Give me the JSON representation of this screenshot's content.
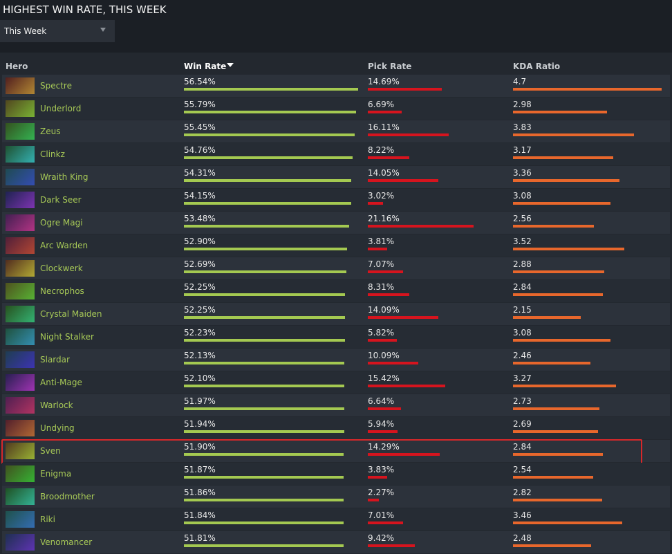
{
  "header": {
    "title": "HIGHEST WIN RATE, THIS WEEK",
    "dropdown": "This Week"
  },
  "table": {
    "columns": {
      "hero": "Hero",
      "win_rate": "Win Rate",
      "pick_rate": "Pick Rate",
      "kda": "KDA Ratio"
    },
    "rows": [
      {
        "hero": "Spectre",
        "win_rate": {
          "value": 56.54,
          "label": "56.54%"
        },
        "pick_rate": {
          "value": 14.69,
          "label": "14.69%"
        },
        "kda": 4.7
      },
      {
        "hero": "Underlord",
        "win_rate": {
          "value": 55.79,
          "label": "55.79%"
        },
        "pick_rate": {
          "value": 6.69,
          "label": "6.69%"
        },
        "kda": 2.98
      },
      {
        "hero": "Zeus",
        "win_rate": {
          "value": 55.45,
          "label": "55.45%"
        },
        "pick_rate": {
          "value": 16.11,
          "label": "16.11%"
        },
        "kda": 3.83
      },
      {
        "hero": "Clinkz",
        "win_rate": {
          "value": 54.76,
          "label": "54.76%"
        },
        "pick_rate": {
          "value": 8.22,
          "label": "8.22%"
        },
        "kda": 3.17
      },
      {
        "hero": "Wraith King",
        "win_rate": {
          "value": 54.31,
          "label": "54.31%"
        },
        "pick_rate": {
          "value": 14.05,
          "label": "14.05%"
        },
        "kda": 3.36
      },
      {
        "hero": "Dark Seer",
        "win_rate": {
          "value": 54.15,
          "label": "54.15%"
        },
        "pick_rate": {
          "value": 3.02,
          "label": "3.02%"
        },
        "kda": 3.08
      },
      {
        "hero": "Ogre Magi",
        "win_rate": {
          "value": 53.48,
          "label": "53.48%"
        },
        "pick_rate": {
          "value": 21.16,
          "label": "21.16%"
        },
        "kda": 2.56
      },
      {
        "hero": "Arc Warden",
        "win_rate": {
          "value": 52.9,
          "label": "52.90%"
        },
        "pick_rate": {
          "value": 3.81,
          "label": "3.81%"
        },
        "kda": 3.52
      },
      {
        "hero": "Clockwerk",
        "win_rate": {
          "value": 52.69,
          "label": "52.69%"
        },
        "pick_rate": {
          "value": 7.07,
          "label": "7.07%"
        },
        "kda": 2.88
      },
      {
        "hero": "Necrophos",
        "win_rate": {
          "value": 52.25,
          "label": "52.25%"
        },
        "pick_rate": {
          "value": 8.31,
          "label": "8.31%"
        },
        "kda": 2.84
      },
      {
        "hero": "Crystal Maiden",
        "win_rate": {
          "value": 52.25,
          "label": "52.25%"
        },
        "pick_rate": {
          "value": 14.09,
          "label": "14.09%"
        },
        "kda": 2.15
      },
      {
        "hero": "Night Stalker",
        "win_rate": {
          "value": 52.23,
          "label": "52.23%"
        },
        "pick_rate": {
          "value": 5.82,
          "label": "5.82%"
        },
        "kda": 3.08
      },
      {
        "hero": "Slardar",
        "win_rate": {
          "value": 52.13,
          "label": "52.13%"
        },
        "pick_rate": {
          "value": 10.09,
          "label": "10.09%"
        },
        "kda": 2.46
      },
      {
        "hero": "Anti-Mage",
        "win_rate": {
          "value": 52.1,
          "label": "52.10%"
        },
        "pick_rate": {
          "value": 15.42,
          "label": "15.42%"
        },
        "kda": 3.27
      },
      {
        "hero": "Warlock",
        "win_rate": {
          "value": 51.97,
          "label": "51.97%"
        },
        "pick_rate": {
          "value": 6.64,
          "label": "6.64%"
        },
        "kda": 2.73
      },
      {
        "hero": "Undying",
        "win_rate": {
          "value": 51.94,
          "label": "51.94%"
        },
        "pick_rate": {
          "value": 5.94,
          "label": "5.94%"
        },
        "kda": 2.69
      },
      {
        "hero": "Sven",
        "win_rate": {
          "value": 51.9,
          "label": "51.90%"
        },
        "pick_rate": {
          "value": 14.29,
          "label": "14.29%"
        },
        "kda": 2.84,
        "highlighted": true
      },
      {
        "hero": "Enigma",
        "win_rate": {
          "value": 51.87,
          "label": "51.87%"
        },
        "pick_rate": {
          "value": 3.83,
          "label": "3.83%"
        },
        "kda": 2.54
      },
      {
        "hero": "Broodmother",
        "win_rate": {
          "value": 51.86,
          "label": "51.86%"
        },
        "pick_rate": {
          "value": 2.27,
          "label": "2.27%"
        },
        "kda": 2.82
      },
      {
        "hero": "Riki",
        "win_rate": {
          "value": 51.84,
          "label": "51.84%"
        },
        "pick_rate": {
          "value": 7.01,
          "label": "7.01%"
        },
        "kda": 3.46
      },
      {
        "hero": "Venomancer",
        "win_rate": {
          "value": 51.81,
          "label": "51.81%"
        },
        "pick_rate": {
          "value": 9.42,
          "label": "9.42%"
        },
        "kda": 2.48
      }
    ]
  }
}
